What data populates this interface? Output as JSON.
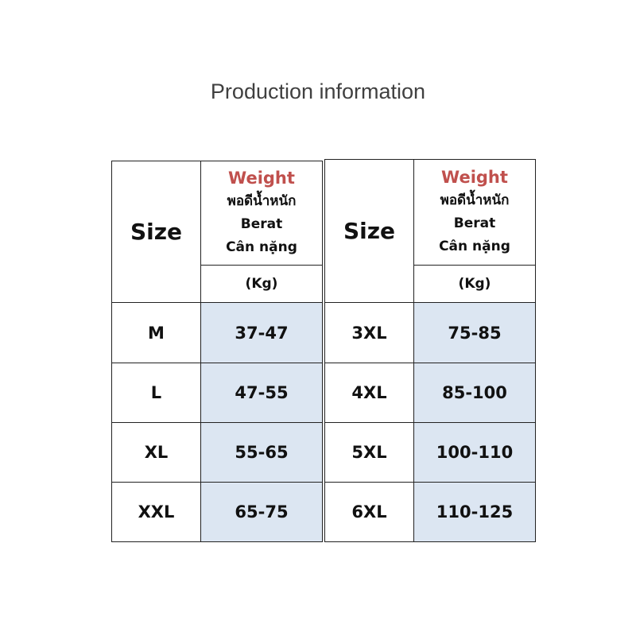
{
  "title": "Production information",
  "tables": [
    {
      "header": {
        "size": "Size",
        "weight": [
          "Weight",
          "พอดีน้ำหนัก",
          "Berat",
          "Cân nặng"
        ],
        "unit": "(Kg)"
      },
      "rows": [
        [
          "M",
          "37-47"
        ],
        [
          "L",
          "47-55"
        ],
        [
          "XL",
          "55-65"
        ],
        [
          "XXL",
          "65-75"
        ]
      ]
    },
    {
      "header": {
        "size": "Size",
        "weight": [
          "Weight",
          "พอดีน้ำหนัก",
          "Berat",
          "Cân nặng"
        ],
        "unit": "(Kg)"
      },
      "rows": [
        [
          "3XL",
          "75-85"
        ],
        [
          "4XL",
          "85-100"
        ],
        [
          "5XL",
          "100-110"
        ],
        [
          "6XL",
          "110-125"
        ]
      ]
    }
  ]
}
